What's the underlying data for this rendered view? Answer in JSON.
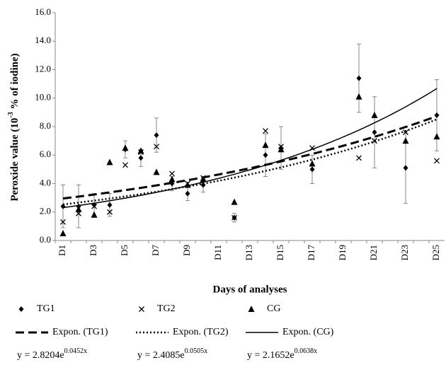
{
  "chart_data": {
    "type": "scatter",
    "y_label": "Peroxide value  (10",
    "y_label_sup": "-3",
    "y_label_end": " %  of iodine)",
    "x_label": "Days of analyses",
    "categories": [
      "D1",
      null,
      "D3",
      null,
      "D5",
      null,
      "D7",
      null,
      "D9",
      null,
      "D11",
      null,
      "D13",
      null,
      "D15",
      null,
      "D17",
      null,
      "D19",
      null,
      "D21",
      null,
      "D23",
      null,
      "D25"
    ],
    "ylim": [
      0,
      16
    ],
    "yticks": [
      {
        "value": 0,
        "label": "0.0"
      },
      {
        "value": 2,
        "label": "2.0"
      },
      {
        "value": 4,
        "label": "4.0"
      },
      {
        "value": 6,
        "label": "6.0"
      },
      {
        "value": 8,
        "label": "8.0"
      },
      {
        "value": 10,
        "label": "10.0"
      },
      {
        "value": 12,
        "label": "12.0"
      },
      {
        "value": 14,
        "label": "14.0"
      },
      {
        "value": 16,
        "label": "16.0"
      }
    ],
    "grid": false,
    "series": [
      {
        "name": "TG1",
        "color": "#000000",
        "marker": "diamond",
        "values": [
          2.4,
          2.4,
          2.5,
          2.5,
          6.4,
          5.8,
          7.4,
          4.0,
          3.3,
          3.9,
          null,
          1.6,
          null,
          6.0,
          6.5,
          null,
          5.0,
          null,
          null,
          11.4,
          7.6,
          null,
          5.1,
          null,
          8.8
        ],
        "errors": [
          1.5,
          1.5,
          0.8,
          0.8,
          0.6,
          0.6,
          1.2,
          0.5,
          0.5,
          0.5,
          null,
          0.3,
          null,
          1.5,
          1.5,
          null,
          1.0,
          null,
          null,
          2.4,
          2.5,
          null,
          2.5,
          null,
          2.5
        ],
        "trend": {
          "name": "Expon. (TG1)",
          "dash": "12,6",
          "width": 3,
          "a": 2.8204,
          "b": 0.0452,
          "equation": "y = 2.8204e",
          "exponent": "0.0452x"
        }
      },
      {
        "name": "TG2",
        "color": "#000000",
        "marker": "cross",
        "values": [
          1.3,
          1.9,
          2.4,
          2.0,
          5.3,
          6.2,
          6.6,
          4.7,
          4.0,
          4.4,
          null,
          1.6,
          null,
          7.7,
          6.6,
          null,
          6.5,
          null,
          null,
          5.8,
          7.0,
          null,
          7.6,
          null,
          5.6
        ],
        "trend": {
          "name": "Expon. (TG2)",
          "dash": "2,3",
          "width": 2.5,
          "a": 2.4085,
          "b": 0.0505,
          "equation": "y = 2.4085e",
          "exponent": "0.0505x"
        }
      },
      {
        "name": "CG",
        "color": "#000000",
        "marker": "triangle",
        "values": [
          0.5,
          2.2,
          1.8,
          5.5,
          6.5,
          6.3,
          4.8,
          4.3,
          3.9,
          4.3,
          null,
          2.7,
          null,
          6.7,
          6.4,
          null,
          5.4,
          null,
          null,
          10.1,
          8.8,
          null,
          7.0,
          null,
          7.3
        ],
        "trend": {
          "name": "Expon. (CG)",
          "dash": "",
          "width": 1.5,
          "a": 2.1652,
          "b": 0.0638,
          "equation": "y = 2.1652e",
          "exponent": "0.0638x"
        }
      }
    ]
  }
}
